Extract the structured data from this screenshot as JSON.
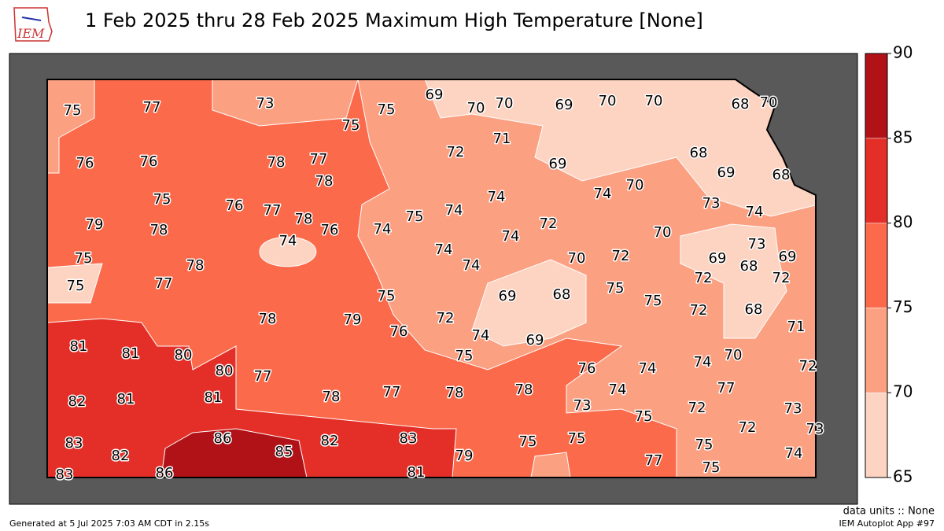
{
  "header": {
    "logo": "IEM",
    "title": "1 Feb 2025 thru 28 Feb 2025 Maximum High Temperature [None]"
  },
  "colorbar": {
    "lim": [
      65,
      90
    ],
    "ticks": [
      65,
      70,
      75,
      80,
      85,
      90
    ],
    "colors": [
      "#fdd4c2",
      "#fca082",
      "#fb6a4a",
      "#e32f27",
      "#b11218"
    ]
  },
  "stations": [
    75,
    77,
    73,
    75,
    75,
    69,
    70,
    70,
    69,
    70,
    70,
    68,
    70,
    76,
    76,
    78,
    77,
    78,
    72,
    71,
    69,
    68,
    69,
    68,
    75,
    76,
    77,
    78,
    76,
    75,
    74,
    74,
    74,
    70,
    73,
    74,
    79,
    78,
    74,
    74,
    72,
    74,
    70,
    73,
    75,
    78,
    74,
    74,
    70,
    72,
    69,
    68,
    69,
    75,
    77,
    75,
    69,
    68,
    75,
    75,
    72,
    72,
    78,
    79,
    72,
    72,
    68,
    71,
    81,
    81,
    80,
    80,
    76,
    74,
    75,
    69,
    76,
    74,
    74,
    70,
    72,
    82,
    81,
    81,
    77,
    78,
    77,
    78,
    78,
    74,
    73,
    75,
    72,
    77,
    73,
    72,
    73,
    83,
    82,
    86,
    85,
    82,
    83,
    79,
    75,
    75,
    77,
    75,
    74,
    83,
    86,
    81,
    75
  ],
  "footer": {
    "units": "data units :: None",
    "app": "IEM Autoplot App #97",
    "generated": "Generated at 5 Jul 2025 7:03 AM CDT in 2.15s"
  }
}
